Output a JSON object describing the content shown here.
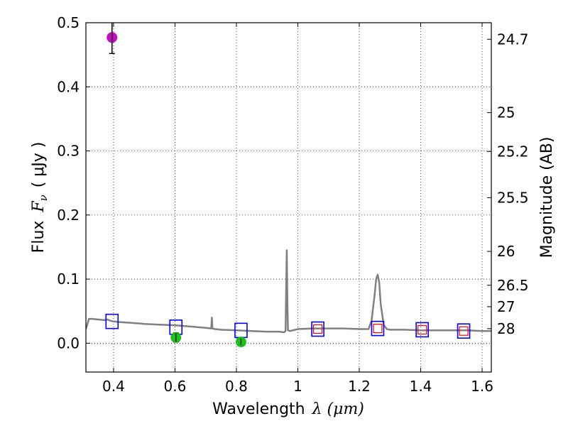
{
  "chart_data": {
    "type": "scatter",
    "xlabel": "Wavelength",
    "xlabel_math": "λ (μm)",
    "ylabel": "Flux",
    "ylabel_math": "F",
    "ylabel_sub": "ν",
    "ylabel_unit": "( μJy )",
    "y2label": "Magnitude (AB)",
    "xlim": [
      0.31,
      1.63
    ],
    "ylim": [
      -0.045,
      0.5
    ],
    "grid": true,
    "grid_style": "dotted",
    "x_ticks": [
      0.4,
      0.6,
      0.8,
      1.0,
      1.2,
      1.4,
      1.6
    ],
    "x_tick_labels": [
      "0.4",
      "0.6",
      "0.8",
      "1",
      "1.2",
      "1.4",
      "1.6"
    ],
    "y_ticks": [
      0.0,
      0.1,
      0.2,
      0.3,
      0.4,
      0.5
    ],
    "y_tick_labels": [
      "0.0",
      "0.1",
      "0.2",
      "0.3",
      "0.4",
      "0.5"
    ],
    "mag_ticks": [
      {
        "label": "24.7",
        "flux": 0.4742
      },
      {
        "label": "25",
        "flux": 0.3597
      },
      {
        "label": "25.2",
        "flux": 0.2992
      },
      {
        "label": "25.5",
        "flux": 0.227
      },
      {
        "label": "26",
        "flux": 0.1432
      },
      {
        "label": "26.5",
        "flux": 0.0904
      },
      {
        "label": "27",
        "flux": 0.057
      },
      {
        "label": "28",
        "flux": 0.0227
      }
    ],
    "series": [
      {
        "name": "model spectrum",
        "kind": "line",
        "color": "#808080",
        "x": [
          0.31,
          0.315,
          0.32,
          0.33,
          0.35,
          0.37,
          0.38,
          0.39,
          0.4,
          0.42,
          0.45,
          0.48,
          0.5,
          0.55,
          0.6,
          0.65,
          0.7,
          0.718,
          0.72,
          0.722,
          0.73,
          0.75,
          0.8,
          0.85,
          0.9,
          0.94,
          0.955,
          0.96,
          0.962,
          0.964,
          0.966,
          0.968,
          0.975,
          1.0,
          1.05,
          1.1,
          1.15,
          1.2,
          1.23,
          1.24,
          1.25,
          1.255,
          1.26,
          1.265,
          1.27,
          1.28,
          1.29,
          1.3,
          1.35,
          1.4,
          1.45,
          1.5,
          1.55,
          1.6,
          1.63
        ],
        "y": [
          0.022,
          0.03,
          0.038,
          0.038,
          0.037,
          0.036,
          0.037,
          0.035,
          0.034,
          0.033,
          0.032,
          0.031,
          0.03,
          0.029,
          0.028,
          0.026,
          0.024,
          0.023,
          0.04,
          0.023,
          0.022,
          0.021,
          0.02,
          0.019,
          0.018,
          0.018,
          0.017,
          0.019,
          0.08,
          0.145,
          0.06,
          0.02,
          0.019,
          0.022,
          0.023,
          0.023,
          0.023,
          0.022,
          0.022,
          0.035,
          0.075,
          0.1,
          0.107,
          0.095,
          0.06,
          0.028,
          0.022,
          0.021,
          0.021,
          0.02,
          0.02,
          0.02,
          0.02,
          0.019,
          0.019
        ]
      },
      {
        "name": "model photometry",
        "kind": "marker",
        "marker": "square-open",
        "color": "#0000ff",
        "x": [
          0.395,
          0.603,
          0.815,
          1.065,
          1.26,
          1.405,
          1.54
        ],
        "y": [
          0.034,
          0.025,
          0.02,
          0.022,
          0.023,
          0.021,
          0.019
        ]
      },
      {
        "name": "observed photometry (NIR)",
        "kind": "marker",
        "marker": "square-open-small",
        "color": "#ff0000",
        "x": [
          1.065,
          1.26,
          1.405,
          1.54
        ],
        "y": [
          0.022,
          0.023,
          0.021,
          0.019
        ]
      },
      {
        "name": "detection",
        "kind": "marker",
        "marker": "circle",
        "color": "#c000c0",
        "x": [
          0.395
        ],
        "y": [
          0.477
        ],
        "yerr": [
          0.025
        ]
      },
      {
        "name": "upper-limit photometry",
        "kind": "marker",
        "marker": "circle",
        "color": "#10c010",
        "x": [
          0.603,
          0.815
        ],
        "y": [
          0.009,
          0.002
        ],
        "yerr": [
          0.007,
          0.005
        ]
      }
    ]
  }
}
